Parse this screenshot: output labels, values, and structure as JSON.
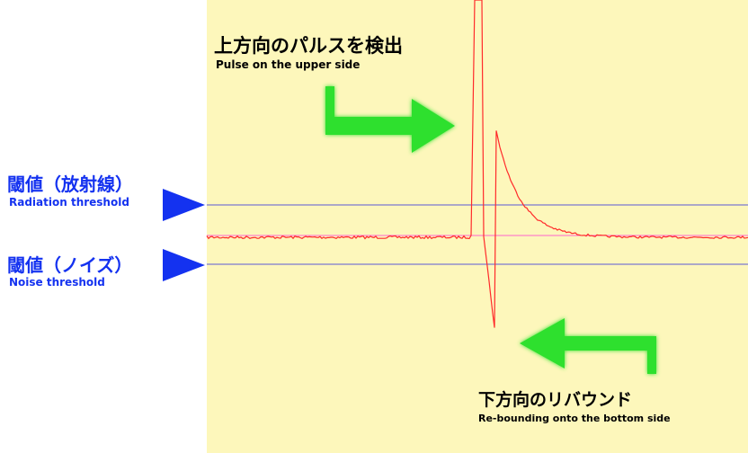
{
  "annotations": {
    "upper_pulse": {
      "title_ja": "上方向のパルスを検出",
      "title_en": "Pulse on the upper side"
    },
    "rebound": {
      "title_ja": "下方向のリバウンド",
      "title_en": "Re-bounding onto the bottom side"
    },
    "radiation_threshold": {
      "title_ja": "閾値（放射線）",
      "title_en": "Radiation threshold"
    },
    "noise_threshold": {
      "title_ja": "閾値（ノイズ）",
      "title_en": "Noise threshold"
    }
  },
  "colors": {
    "panel_background": "#fdf7bb",
    "signal": "#ff2a2a",
    "baseline": "#ff66cc",
    "threshold_line": "#5a5ad6",
    "pointer": "#1432f0",
    "label_blue": "#1432f0",
    "callout_arrow": "#2ee02e",
    "callout_text": "#000000"
  },
  "icons": {
    "pointer": "triangle-right-icon",
    "arrow_right": "green-hooked-arrow-right-icon",
    "arrow_left": "green-hooked-arrow-left-icon"
  }
}
